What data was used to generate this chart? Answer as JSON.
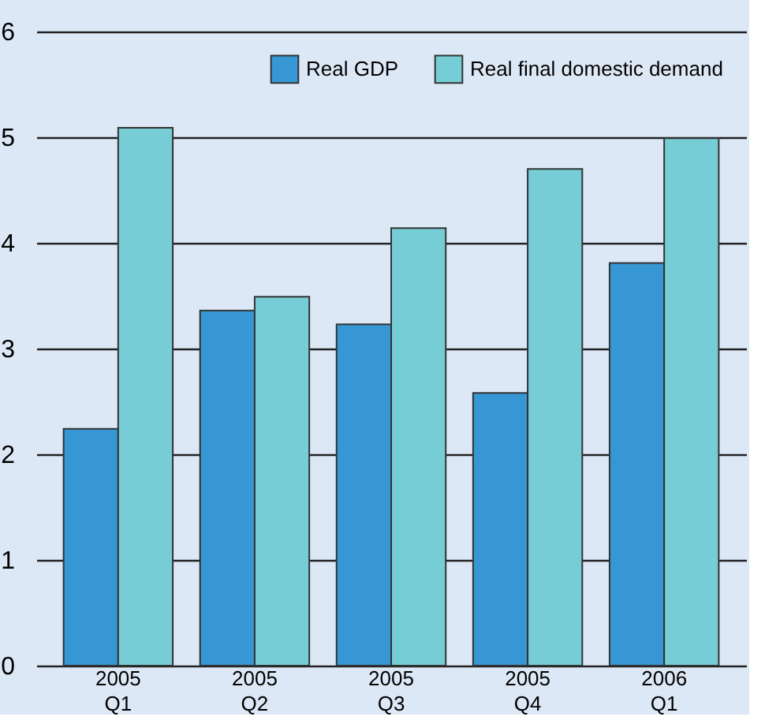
{
  "chart_data": {
    "type": "bar",
    "categories": [
      "2005 Q1",
      "2005 Q2",
      "2005 Q3",
      "2005 Q4",
      "2006 Q1"
    ],
    "series": [
      {
        "name": "Real GDP",
        "color": "#3797d4",
        "values": [
          2.24,
          3.36,
          3.23,
          2.58,
          3.81
        ]
      },
      {
        "name": "Real final domestic demand",
        "color": "#76cdd5",
        "values": [
          5.09,
          3.49,
          4.14,
          4.7,
          4.99
        ]
      }
    ],
    "ylim": [
      0,
      6
    ],
    "yticks": [
      0,
      1,
      2,
      3,
      4,
      5,
      6
    ],
    "grid": "y",
    "legend": "top right"
  }
}
